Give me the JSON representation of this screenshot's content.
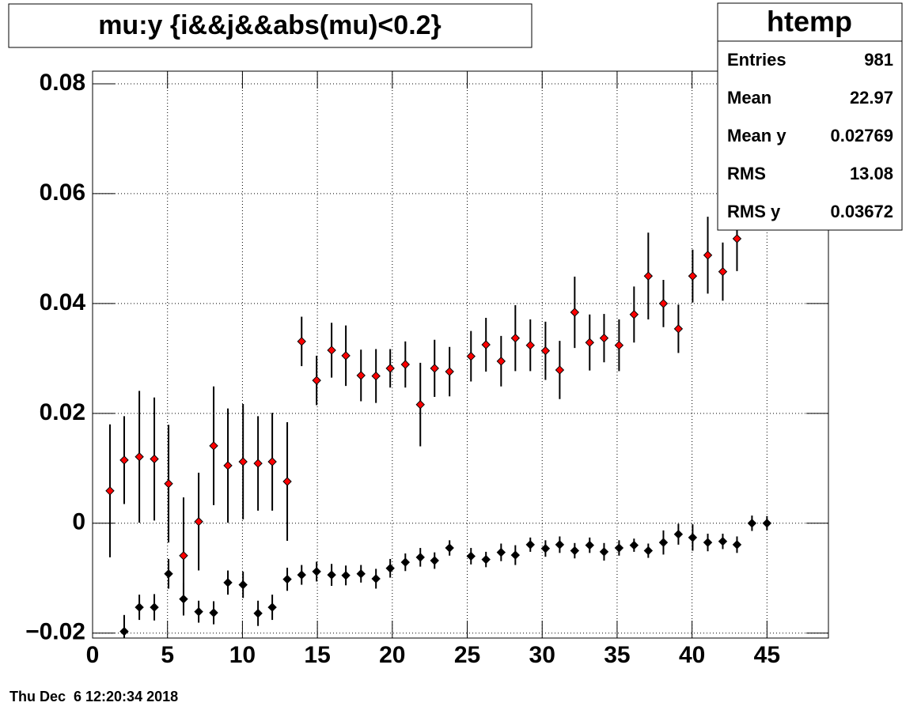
{
  "chart_data": {
    "type": "profile",
    "title": "mu:y {i&&j&&abs(mu)<0.2}",
    "xlim": [
      0,
      49.1
    ],
    "ylim": [
      -0.0209,
      0.0823
    ],
    "xticks": [
      0,
      5,
      10,
      15,
      20,
      25,
      30,
      35,
      40,
      45
    ],
    "yticks": [
      {
        "value": -0.02,
        "label": "−0.02"
      },
      0,
      0.02,
      0.04,
      0.06,
      0.08
    ],
    "grid": true,
    "series": [
      {
        "color": "#ff0000",
        "x": [
          1.16,
          2.11,
          3.12,
          4.12,
          5.07,
          6.07,
          7.08,
          8.08,
          9.03,
          10.04,
          11.04,
          11.99,
          12.99,
          13.95,
          14.95,
          15.95,
          16.9,
          17.91,
          18.91,
          19.86,
          20.87,
          21.87,
          22.82,
          23.82,
          25.25,
          26.25,
          27.26,
          28.21,
          29.21,
          30.22,
          31.17,
          32.17,
          33.17,
          34.13,
          35.13,
          36.13,
          37.08,
          38.09,
          39.09,
          40.04,
          41.05,
          42.05,
          43.0
        ],
        "values": [
          0.0059,
          0.0115,
          0.0121,
          0.0117,
          0.0072,
          -0.0059,
          0.0003,
          0.0141,
          0.0105,
          0.0112,
          0.0109,
          0.0112,
          0.0076,
          0.0331,
          0.026,
          0.0315,
          0.0305,
          0.0269,
          0.0268,
          0.0282,
          0.0289,
          0.0216,
          0.0282,
          0.0276,
          0.0304,
          0.0325,
          0.0295,
          0.0337,
          0.0324,
          0.0314,
          0.0279,
          0.0384,
          0.0329,
          0.0337,
          0.0324,
          0.038,
          0.045,
          0.04,
          0.0354,
          0.045,
          0.0488,
          0.0458,
          0.0518
        ],
        "errors": [
          0.0121,
          0.008,
          0.012,
          0.0112,
          0.0107,
          0.0106,
          0.0089,
          0.0108,
          0.0104,
          0.0105,
          0.0086,
          0.0089,
          0.0108,
          0.0045,
          0.0045,
          0.005,
          0.0055,
          0.0047,
          0.0049,
          0.0035,
          0.0042,
          0.0076,
          0.0052,
          0.0045,
          0.0046,
          0.0049,
          0.0046,
          0.006,
          0.0047,
          0.0053,
          0.0053,
          0.0065,
          0.0051,
          0.0044,
          0.0047,
          0.0051,
          0.0079,
          0.0043,
          0.0044,
          0.0048,
          0.007,
          0.0053,
          0.0059
        ]
      },
      {
        "color": "#000000",
        "x": [
          2.11,
          3.12,
          4.12,
          5.07,
          6.07,
          7.08,
          8.08,
          9.03,
          10.04,
          11.04,
          11.99,
          12.99,
          13.95,
          14.95,
          15.95,
          16.9,
          17.91,
          18.91,
          19.86,
          20.87,
          21.87,
          22.82,
          23.82,
          25.25,
          26.25,
          27.26,
          28.21,
          29.21,
          30.22,
          31.17,
          32.17,
          33.17,
          34.13,
          35.13,
          36.13,
          37.08,
          38.09,
          39.09,
          40.04,
          41.05,
          42.05,
          43.0,
          44.0,
          45.0
        ],
        "values": [
          -0.0197,
          -0.0153,
          -0.0153,
          -0.0092,
          -0.0138,
          -0.0161,
          -0.0163,
          -0.0108,
          -0.0112,
          -0.0164,
          -0.0153,
          -0.0102,
          -0.0094,
          -0.0088,
          -0.0094,
          -0.0095,
          -0.0092,
          -0.0101,
          -0.0082,
          -0.0071,
          -0.0062,
          -0.0068,
          -0.0045,
          -0.006,
          -0.0066,
          -0.0053,
          -0.0058,
          -0.0039,
          -0.0046,
          -0.0039,
          -0.005,
          -0.004,
          -0.0052,
          -0.0045,
          -0.004,
          -0.005,
          -0.0035,
          -0.002,
          -0.0026,
          -0.0035,
          -0.0033,
          -0.0039,
          0.0,
          0.0
        ],
        "errors": [
          0.003,
          0.0023,
          0.0024,
          0.0027,
          0.003,
          0.002,
          0.0021,
          0.0022,
          0.0024,
          0.0023,
          0.0023,
          0.0021,
          0.0018,
          0.0018,
          0.002,
          0.0018,
          0.0016,
          0.0018,
          0.0017,
          0.0016,
          0.0017,
          0.0015,
          0.0014,
          0.0015,
          0.0014,
          0.0016,
          0.0018,
          0.0013,
          0.0015,
          0.0015,
          0.0014,
          0.0014,
          0.0016,
          0.0014,
          0.0012,
          0.0013,
          0.0022,
          0.0019,
          0.0024,
          0.0016,
          0.0014,
          0.0015,
          0.0014,
          0.0013
        ]
      }
    ],
    "stats": {
      "title": "htemp",
      "rows": [
        {
          "label": "Entries",
          "value": 981
        },
        {
          "label": "Mean",
          "value": 22.97
        },
        {
          "label": "Mean y",
          "value": 0.02769
        },
        {
          "label": "RMS",
          "value": 13.08
        },
        {
          "label": "RMS y",
          "value": 0.03672
        }
      ]
    },
    "footer": "Thu Dec  6 12:20:34 2018"
  }
}
